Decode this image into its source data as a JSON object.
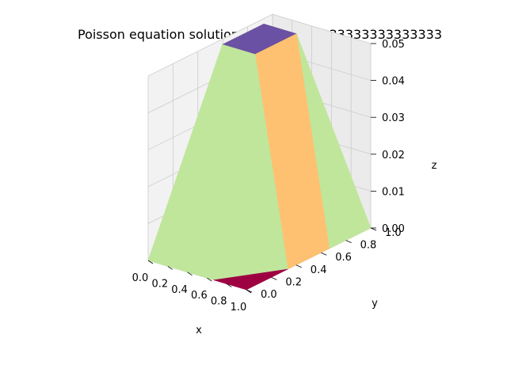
{
  "chart_data": {
    "type": "surface3d",
    "title": "Poisson equation solution with h = 0.3333333333333333",
    "xlabel": "x",
    "ylabel": "y",
    "zlabel": "z",
    "xlim": [
      0,
      1
    ],
    "ylim": [
      0,
      1
    ],
    "zlim": [
      0,
      0.05
    ],
    "x_ticks": [
      "0.0",
      "0.2",
      "0.4",
      "0.6",
      "0.8",
      "1.0"
    ],
    "y_ticks": [
      "0.0",
      "0.2",
      "0.4",
      "0.6",
      "0.8",
      "1.0"
    ],
    "z_ticks": [
      "0.00",
      "0.01",
      "0.02",
      "0.03",
      "0.04",
      "0.05"
    ],
    "grid": true,
    "mesh_x": [
      0,
      0.3333333333333333,
      0.6666666666666666,
      1
    ],
    "mesh_y": [
      0,
      0.3333333333333333,
      0.6666666666666666,
      1
    ],
    "z_values": [
      [
        0,
        0,
        0,
        0
      ],
      [
        0,
        0.0556,
        0.0556,
        0
      ],
      [
        0,
        0.0556,
        0.0556,
        0
      ],
      [
        0,
        0,
        0,
        0
      ]
    ],
    "colormap": "Spectral",
    "colors": {
      "top": "#6a51a3",
      "side_yellow": "#fec171",
      "side_green": "#c0e69b",
      "base": "#9e0142",
      "pane": "#f2f2f2",
      "grid": "#cccccc"
    }
  }
}
